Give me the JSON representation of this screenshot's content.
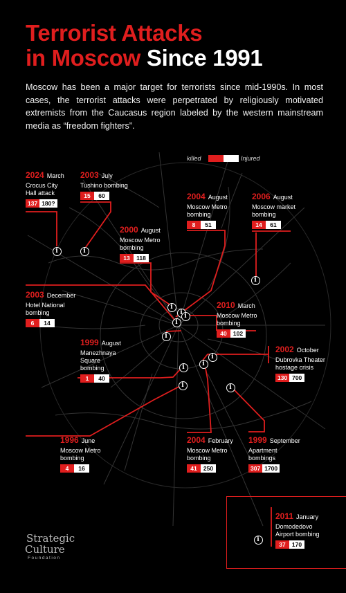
{
  "title": {
    "line1": "Terrorist Attacks",
    "line2_red": "in Moscow",
    "line2_white": "Since 1991"
  },
  "intro": "Moscow has been a major target for terrorists since mid-1990s. In most cases, the terrorist attacks were perpetrated by religiously motivated extremists from the Caucasus region labeled by the western mainstream media as “freedom fighters”.",
  "legend": {
    "killed": "killed",
    "injured": "Injured"
  },
  "colors": {
    "accent": "#e01e1e",
    "background": "#000000",
    "text": "#ffffff"
  },
  "events": [
    {
      "year": "2024",
      "month": "March",
      "desc": "Crocus City\nHall attack",
      "killed": "137",
      "injured": "180?"
    },
    {
      "year": "2003",
      "month": "July",
      "desc": "Tushino bombing",
      "killed": "15",
      "injured": "60"
    },
    {
      "year": "2004",
      "month": "August",
      "desc": "Moscow Metro\nbombing",
      "killed": "8",
      "injured": "51"
    },
    {
      "year": "2006",
      "month": "August",
      "desc": "Moscow market\nbombing",
      "killed": "14",
      "injured": "61"
    },
    {
      "year": "2000",
      "month": "August",
      "desc": "Moscow Metro\nbombing",
      "killed": "13",
      "injured": "118"
    },
    {
      "year": "2003",
      "month": "December",
      "desc": "Hotel National\nbombing",
      "killed": "6",
      "injured": "14"
    },
    {
      "year": "2010",
      "month": "March",
      "desc": "Moscow Metro\nbombing",
      "killed": "40",
      "injured": "102"
    },
    {
      "year": "1999",
      "month": "August",
      "desc": "Manezhnaya\nSquare\nbombing",
      "killed": "1",
      "injured": "40"
    },
    {
      "year": "2002",
      "month": "October",
      "desc": "Dubrovka Theater\nhostage crisis",
      "killed": "130",
      "injured": "700"
    },
    {
      "year": "1996",
      "month": "June",
      "desc": "Moscow Metro\nbombing",
      "killed": "4",
      "injured": "16"
    },
    {
      "year": "2004",
      "month": "February",
      "desc": "Moscow Metro\nbombing",
      "killed": "41",
      "injured": "250"
    },
    {
      "year": "1999",
      "month": "September",
      "desc": "Apartment\nbombings",
      "killed": "307",
      "injured": "1700"
    },
    {
      "year": "2011",
      "month": "January",
      "desc": "Domodedovo\nAirport bombing",
      "killed": "37",
      "injured": "170"
    }
  ],
  "pin_icon": "info-pin-icon",
  "pin_glyph": "i",
  "logo": {
    "line1": "Strategic",
    "line2": "Culture",
    "line3": "Foundation"
  }
}
